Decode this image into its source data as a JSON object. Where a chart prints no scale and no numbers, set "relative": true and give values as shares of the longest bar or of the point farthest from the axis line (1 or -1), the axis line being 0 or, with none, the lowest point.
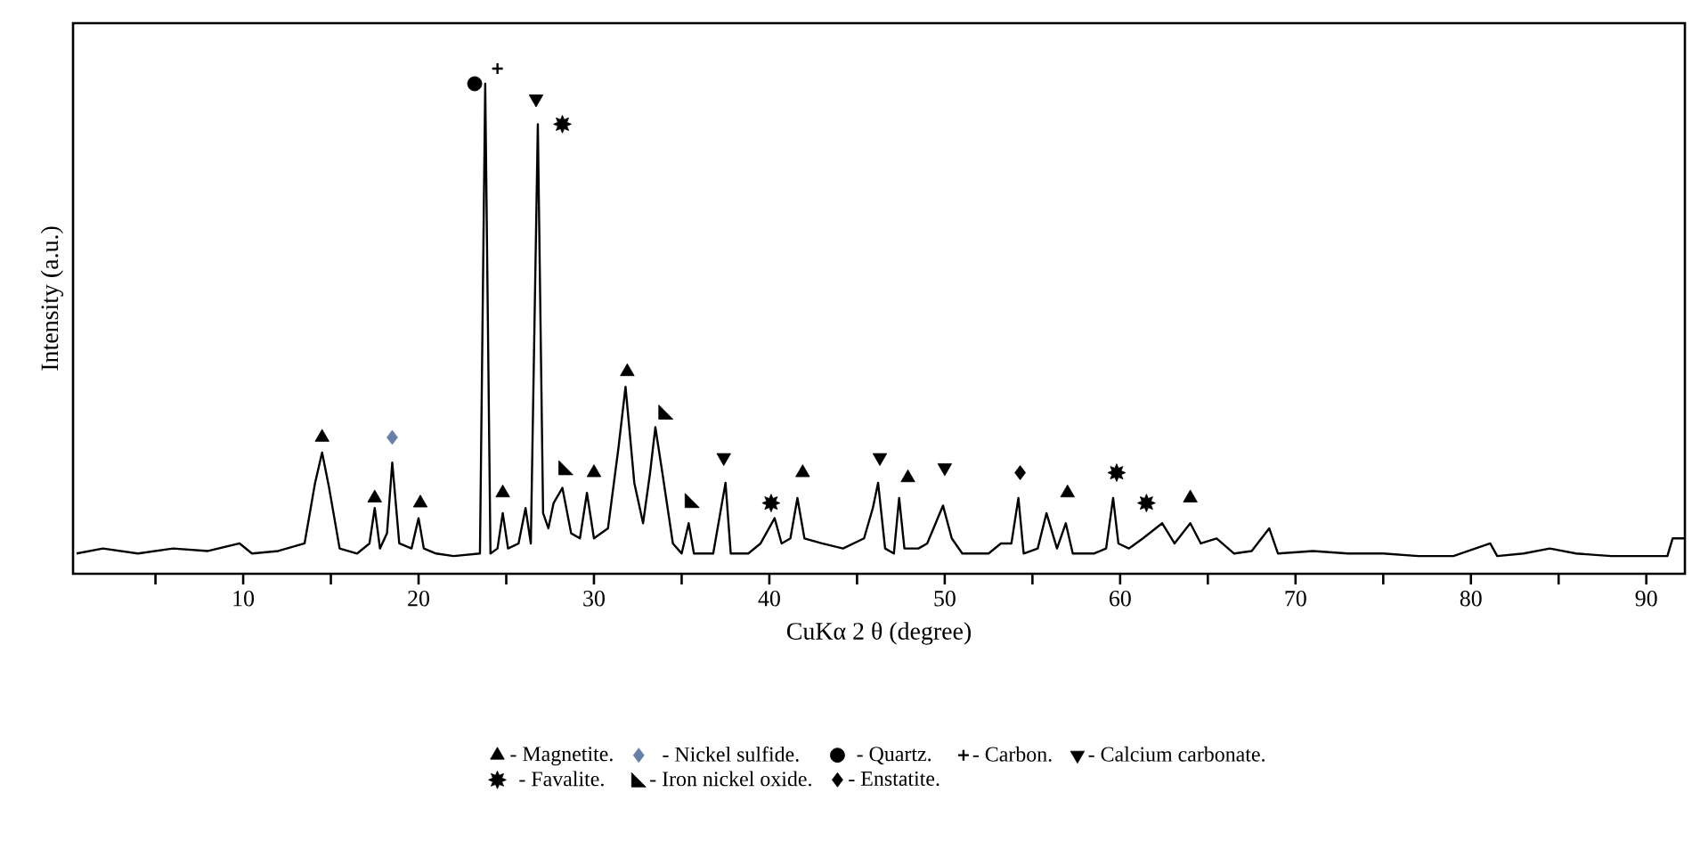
{
  "chart_data": {
    "type": "line",
    "relative": true,
    "xlabel": "CuKα 2 θ (degree)",
    "ylabel": "Intensity (a.u.)",
    "xlim": [
      0.3,
      92.2
    ],
    "xticks": [
      {
        "value": 5,
        "label": null
      },
      10,
      {
        "value": 15,
        "label": null
      },
      20,
      {
        "value": 25,
        "label": null
      },
      30,
      {
        "value": 35,
        "label": null
      },
      40,
      {
        "value": 45,
        "label": null
      },
      50,
      {
        "value": 55,
        "label": null
      },
      60,
      {
        "value": 65,
        "label": null
      },
      70,
      {
        "value": 75,
        "label": null
      },
      80,
      {
        "value": 85,
        "label": null
      },
      90
    ],
    "legend": "bottom",
    "grid": false,
    "series": [
      {
        "color": "#000000",
        "x": [
          0.5,
          2,
          4,
          6,
          8,
          9.8,
          10.5,
          12,
          13.5,
          14.1,
          14.5,
          14.9,
          15.5,
          16.5,
          17.2,
          17.5,
          17.8,
          18.2,
          18.5,
          18.9,
          19.6,
          20.0,
          20.3,
          21,
          22,
          23.5,
          23.8,
          24.1,
          24.5,
          24.8,
          25.1,
          25.7,
          26.1,
          26.4,
          26.8,
          27.1,
          27.4,
          27.7,
          28.2,
          28.7,
          29.2,
          29.6,
          30.0,
          30.8,
          31.4,
          31.8,
          32.3,
          32.8,
          33.2,
          33.5,
          33.9,
          34.5,
          35.0,
          35.4,
          35.7,
          36.8,
          37.5,
          37.8,
          38.8,
          39.5,
          40.3,
          40.7,
          41.2,
          41.6,
          42.0,
          43,
          44.2,
          45.4,
          45.9,
          46.2,
          46.6,
          47.1,
          47.4,
          47.7,
          48.5,
          49.0,
          49.9,
          50.4,
          51,
          52.5,
          53.2,
          53.8,
          54.2,
          54.5,
          55.3,
          55.8,
          56.4,
          56.9,
          57.3,
          58.5,
          59.2,
          59.6,
          59.9,
          60.5,
          61.3,
          62.4,
          63.1,
          64.0,
          64.6,
          65.5,
          66.5,
          67.5,
          68.5,
          69,
          71,
          73,
          75,
          77,
          79,
          81.1,
          81.5,
          83,
          84.5,
          86,
          88,
          90,
          91.2,
          91.5,
          92.2
        ],
        "values": [
          0.04,
          0.05,
          0.04,
          0.05,
          0.045,
          0.06,
          0.04,
          0.045,
          0.06,
          0.18,
          0.24,
          0.17,
          0.05,
          0.04,
          0.06,
          0.13,
          0.05,
          0.08,
          0.22,
          0.06,
          0.05,
          0.11,
          0.05,
          0.04,
          0.035,
          0.04,
          0.97,
          0.04,
          0.05,
          0.12,
          0.05,
          0.06,
          0.13,
          0.06,
          0.89,
          0.12,
          0.09,
          0.14,
          0.17,
          0.08,
          0.07,
          0.16,
          0.07,
          0.09,
          0.25,
          0.37,
          0.18,
          0.1,
          0.2,
          0.29,
          0.2,
          0.06,
          0.04,
          0.1,
          0.04,
          0.04,
          0.18,
          0.04,
          0.04,
          0.06,
          0.11,
          0.06,
          0.07,
          0.15,
          0.07,
          0.06,
          0.05,
          0.07,
          0.13,
          0.18,
          0.05,
          0.04,
          0.15,
          0.05,
          0.05,
          0.06,
          0.135,
          0.07,
          0.04,
          0.04,
          0.06,
          0.06,
          0.15,
          0.04,
          0.05,
          0.12,
          0.05,
          0.1,
          0.04,
          0.04,
          0.05,
          0.15,
          0.06,
          0.05,
          0.07,
          0.1,
          0.06,
          0.1,
          0.06,
          0.07,
          0.04,
          0.045,
          0.09,
          0.04,
          0.045,
          0.04,
          0.04,
          0.035,
          0.035,
          0.06,
          0.035,
          0.04,
          0.05,
          0.04,
          0.035,
          0.035,
          0.035,
          0.07,
          0.07
        ]
      },
      {
        "type": "scatter",
        "name": "- Magnetite.",
        "color": "#000000",
        "marker": "triangle",
        "x": [
          14.5,
          17.5,
          20.1,
          24.8,
          30.0,
          31.9,
          41.9,
          47.9,
          57.0,
          64.0
        ],
        "values": [
          0.27,
          0.15,
          0.14,
          0.16,
          0.2,
          0.4,
          0.2,
          0.19,
          0.16,
          0.15
        ]
      },
      {
        "type": "scatter",
        "name": "- Nickel sulfide.",
        "color": "#6a7fa8",
        "marker": "diamond",
        "x": [
          18.5
        ],
        "values": [
          0.27
        ]
      },
      {
        "type": "scatter",
        "name": "- Quartz.",
        "color": "#000000",
        "marker": "circle",
        "x": [
          23.2
        ],
        "values": [
          0.97
        ]
      },
      {
        "type": "scatter",
        "name": "- Carbon.",
        "color": "#000000",
        "marker": "cross",
        "x": [
          24.5
        ],
        "values": [
          1.0
        ]
      },
      {
        "type": "scatter",
        "name": "- Calcium carbonate.",
        "color": "#000000",
        "marker": "triangle-down",
        "x": [
          26.7,
          37.4,
          46.3,
          50.0
        ],
        "values": [
          0.94,
          0.23,
          0.23,
          0.21
        ]
      },
      {
        "type": "scatter",
        "name": "- Favalite.",
        "color": "#000000",
        "marker": "star",
        "x": [
          28.2,
          40.1,
          59.8,
          61.5
        ],
        "values": [
          0.89,
          0.14,
          0.2,
          0.14
        ]
      },
      {
        "type": "scatter",
        "name": "- Iron nickel oxide.",
        "color": "#000000",
        "marker": "triangle-right",
        "x": [
          28.4,
          34.1,
          35.6
        ],
        "values": [
          0.21,
          0.32,
          0.145
        ]
      },
      {
        "type": "scatter",
        "name": "- Enstatite.",
        "color": "#000000",
        "marker": "diamond",
        "x": [
          54.3
        ],
        "values": [
          0.2
        ]
      }
    ]
  }
}
